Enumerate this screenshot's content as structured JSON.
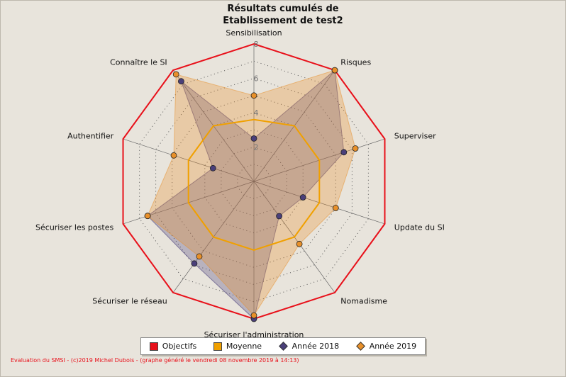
{
  "title": {
    "line1": "Résultats cumulés de",
    "line2": "Etablissement de test2"
  },
  "footer": "Evaluation du SMSI - (c)2019 Michel Dubois - (graphe généré le vendredi 08 novembre 2019 à 14:13)",
  "chart_data": {
    "type": "radar",
    "title": "Résultats cumulés de Etablissement de test2",
    "categories": [
      "Sensibilisation",
      "Risques",
      "Superviser",
      "Update du SI",
      "Nomadisme",
      "Sécuriser l'administration",
      "Sécuriser le réseau",
      "Sécuriser les postes",
      "Authentifier",
      "Connaître le SI"
    ],
    "rlim": [
      0,
      8
    ],
    "ticks": [
      "2",
      "4",
      "6",
      "8"
    ],
    "tick_values": [
      2,
      4,
      6,
      8
    ],
    "grid": true,
    "legend_position": "bottom",
    "series": [
      {
        "name": "Objectifs",
        "values": [
          8,
          8,
          8,
          8,
          8,
          8,
          8,
          8,
          8,
          8
        ],
        "color": "#e8101a",
        "marker": "none"
      },
      {
        "name": "Moyenne",
        "values": [
          3.6,
          4.0,
          4.0,
          4.0,
          4.0,
          4.0,
          4.0,
          4.0,
          4.0,
          4.0
        ],
        "color": "#f0a000",
        "marker": "none"
      },
      {
        "name": "Année 2018",
        "values": [
          2.5,
          8.0,
          5.5,
          3.0,
          2.5,
          8.0,
          5.9,
          6.5,
          2.5,
          7.2
        ],
        "color": "#4a3f7a",
        "marker": "diamond"
      },
      {
        "name": "Année 2019",
        "values": [
          5.0,
          8.0,
          6.2,
          5.0,
          4.5,
          7.8,
          5.4,
          6.5,
          4.9,
          7.7
        ],
        "color": "#e8902a",
        "marker": "diamond"
      }
    ]
  },
  "legend": [
    {
      "label": "Objectifs",
      "color": "#e8101a",
      "shape": "square"
    },
    {
      "label": "Moyenne",
      "color": "#f0a000",
      "shape": "square"
    },
    {
      "label": "Année 2018",
      "color": "#4a3f7a",
      "shape": "diamond"
    },
    {
      "label": "Année 2019",
      "color": "#e8902a",
      "shape": "diamond"
    }
  ]
}
